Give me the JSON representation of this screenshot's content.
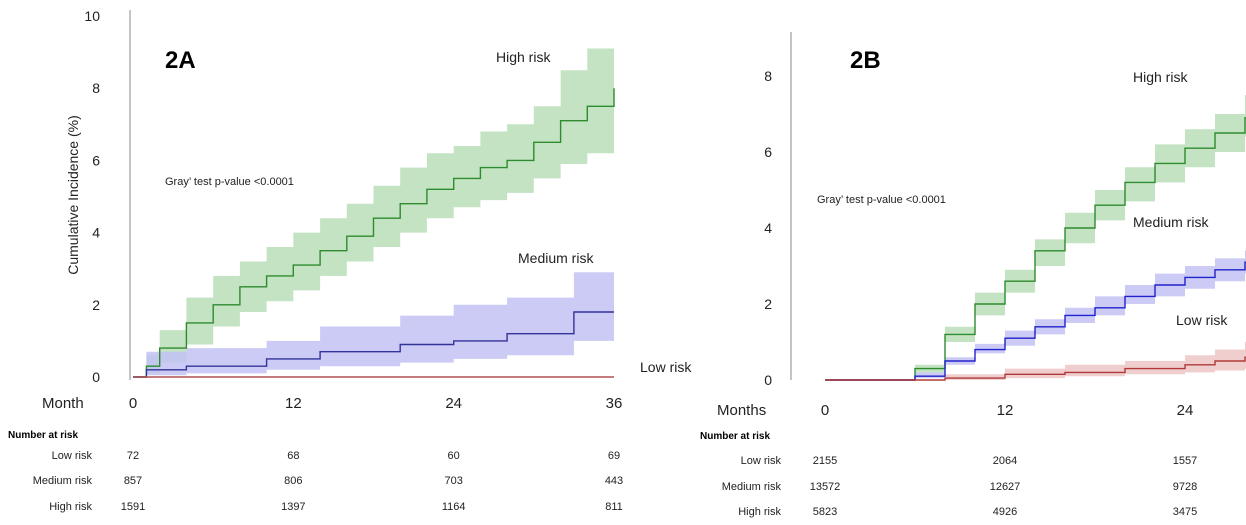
{
  "chart_data": [
    {
      "panel": "2A",
      "type": "line",
      "title": "2A",
      "ylabel": "Cumulative Incidence (%)",
      "xlabel": "Month",
      "ylim": [
        0,
        10
      ],
      "xlim": [
        0,
        36
      ],
      "y_ticks": [
        "0",
        "2",
        "4",
        "6",
        "8",
        "10"
      ],
      "x_ticks": [
        "0",
        "12",
        "24",
        "36"
      ],
      "annotation": "Gray’ test p-value <0.0001",
      "series": [
        {
          "name": "High risk",
          "color": "#2e8b2e",
          "band_color": "#b9deb9",
          "x": [
            0,
            1,
            2,
            4,
            6,
            8,
            10,
            12,
            14,
            16,
            18,
            20,
            22,
            24,
            26,
            28,
            30,
            32,
            34,
            36
          ],
          "y": [
            0,
            0.3,
            0.8,
            1.5,
            2.0,
            2.5,
            2.8,
            3.1,
            3.5,
            3.9,
            4.4,
            4.8,
            5.2,
            5.5,
            5.8,
            6.0,
            6.5,
            7.1,
            7.5,
            8.0
          ],
          "lower": [
            0,
            0.1,
            0.4,
            0.9,
            1.4,
            1.8,
            2.1,
            2.4,
            2.8,
            3.2,
            3.6,
            4.0,
            4.4,
            4.7,
            4.9,
            5.1,
            5.5,
            5.9,
            6.2,
            6.6
          ],
          "upper": [
            0,
            0.6,
            1.3,
            2.2,
            2.8,
            3.2,
            3.6,
            4.0,
            4.4,
            4.8,
            5.3,
            5.8,
            6.2,
            6.4,
            6.8,
            7.0,
            7.5,
            8.5,
            9.1,
            9.5
          ]
        },
        {
          "name": "Medium risk",
          "color": "#333399",
          "band_color": "#c2c2f5",
          "x": [
            0,
            1,
            4,
            10,
            14,
            20,
            24,
            28,
            33,
            36
          ],
          "y": [
            0,
            0.2,
            0.3,
            0.5,
            0.7,
            0.9,
            1.0,
            1.2,
            1.8,
            1.8
          ],
          "lower": [
            0,
            0.05,
            0.1,
            0.2,
            0.3,
            0.4,
            0.5,
            0.6,
            1.0,
            1.0
          ],
          "upper": [
            0,
            0.7,
            0.8,
            1.0,
            1.4,
            1.7,
            2.0,
            2.2,
            2.9,
            2.9
          ]
        },
        {
          "name": "Low risk",
          "color": "#b05050",
          "band_color": "#e8c0c0",
          "x": [
            0,
            36
          ],
          "y": [
            0,
            0
          ],
          "lower": [
            0,
            0
          ],
          "upper": [
            0,
            0.05
          ]
        }
      ],
      "risk_table": {
        "header": "Number at risk",
        "rows": [
          {
            "label": "Low risk",
            "values": [
              "72",
              "68",
              "60",
              "69"
            ]
          },
          {
            "label": "Medium risk",
            "values": [
              "857",
              "806",
              "703",
              "443"
            ]
          },
          {
            "label": "High risk",
            "values": [
              "1591",
              "1397",
              "1164",
              "811"
            ]
          }
        ]
      }
    },
    {
      "panel": "2B",
      "type": "line",
      "title": "2B",
      "xlabel": "Months",
      "ylim": [
        0,
        9
      ],
      "xlim": [
        0,
        30
      ],
      "y_ticks": [
        "0",
        "2",
        "4",
        "6",
        "8"
      ],
      "x_ticks": [
        "0",
        "12",
        "24"
      ],
      "annotation": "Gray’ test p-value <0.0001",
      "series": [
        {
          "name": "High risk",
          "color": "#2e8b2e",
          "band_color": "#b9deb9",
          "x": [
            0,
            5.5,
            6,
            8,
            10,
            12,
            14,
            16,
            18,
            20,
            22,
            24,
            26,
            28,
            30
          ],
          "y": [
            0,
            0,
            0.3,
            1.2,
            2.0,
            2.6,
            3.4,
            4.0,
            4.6,
            5.2,
            5.7,
            6.1,
            6.5,
            6.9,
            7.2
          ],
          "lower": [
            0,
            0,
            0.2,
            1.0,
            1.7,
            2.3,
            3.0,
            3.6,
            4.2,
            4.7,
            5.2,
            5.6,
            6.0,
            6.4,
            6.7
          ],
          "upper": [
            0,
            0,
            0.4,
            1.4,
            2.3,
            2.9,
            3.7,
            4.4,
            5.0,
            5.6,
            6.2,
            6.6,
            7.0,
            7.5,
            7.9
          ]
        },
        {
          "name": "Medium risk",
          "color": "#2222cc",
          "band_color": "#c2c2f5",
          "x": [
            0,
            5.5,
            6,
            8,
            10,
            12,
            14,
            16,
            18,
            20,
            22,
            24,
            26,
            28,
            30
          ],
          "y": [
            0,
            0,
            0.1,
            0.5,
            0.8,
            1.1,
            1.4,
            1.7,
            1.9,
            2.2,
            2.5,
            2.7,
            2.9,
            3.1,
            3.3
          ],
          "lower": [
            0,
            0,
            0.05,
            0.4,
            0.7,
            0.9,
            1.2,
            1.5,
            1.7,
            2.0,
            2.2,
            2.4,
            2.6,
            2.8,
            2.9
          ],
          "upper": [
            0,
            0,
            0.2,
            0.6,
            0.95,
            1.3,
            1.6,
            1.9,
            2.2,
            2.5,
            2.8,
            3.0,
            3.2,
            3.4,
            3.6
          ]
        },
        {
          "name": "Low risk",
          "color": "#b03a3a",
          "band_color": "#eec6c6",
          "x": [
            0,
            6,
            8,
            12,
            16,
            20,
            24,
            26,
            28,
            30
          ],
          "y": [
            0,
            0,
            0.05,
            0.15,
            0.2,
            0.3,
            0.4,
            0.5,
            0.6,
            0.6
          ],
          "lower": [
            0,
            0,
            0.0,
            0.05,
            0.1,
            0.15,
            0.2,
            0.25,
            0.3,
            0.3
          ],
          "upper": [
            0,
            0,
            0.15,
            0.3,
            0.4,
            0.5,
            0.65,
            0.8,
            1.0,
            1.0
          ]
        }
      ],
      "risk_table": {
        "header": "Number at risk",
        "rows": [
          {
            "label": "Low risk",
            "values": [
              "2155",
              "2064",
              "1557"
            ]
          },
          {
            "label": "Medium risk",
            "values": [
              "13572",
              "12627",
              "9728"
            ]
          },
          {
            "label": "High risk",
            "values": [
              "5823",
              "4926",
              "3475"
            ]
          }
        ]
      }
    }
  ]
}
